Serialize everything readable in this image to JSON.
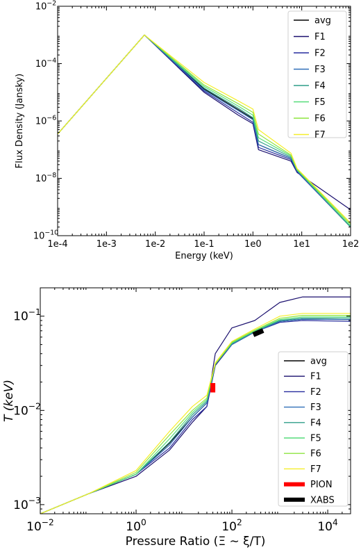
{
  "chart_data": [
    {
      "type": "line",
      "xscale": "log",
      "yscale": "log",
      "xlim": [
        0.0001,
        100
      ],
      "ylim": [
        1e-10,
        0.01
      ],
      "xlabel": "Energy (keV)",
      "ylabel": "Flux Density (Jansky)",
      "xticks": [
        {
          "value": 0.0001,
          "label": "1e-4"
        },
        {
          "value": 0.001,
          "label": "1e-3"
        },
        {
          "value": 0.01,
          "label": "1e-2"
        },
        {
          "value": 0.1,
          "label": "1e-1"
        },
        {
          "value": 1,
          "label": "1e0"
        },
        {
          "value": 10,
          "label": "1e1"
        },
        {
          "value": 100,
          "label": "1e2"
        }
      ],
      "yticks": [
        {
          "value": 1e-10,
          "base": "10",
          "exp": "−10"
        },
        {
          "value": 1e-08,
          "base": "10",
          "exp": "−8"
        },
        {
          "value": 1e-06,
          "base": "10",
          "exp": "−6"
        },
        {
          "value": 0.0001,
          "base": "10",
          "exp": "−4"
        },
        {
          "value": 0.01,
          "base": "10",
          "exp": "−2"
        }
      ],
      "legend_position": "top-right",
      "series": [
        {
          "name": "avg",
          "color": "#000000",
          "x": [
            0.0001,
            0.006,
            0.1,
            0.5,
            1.0,
            1.3,
            6,
            8,
            100
          ],
          "y": [
            3.5e-07,
            0.001,
            1.3e-05,
            2.5e-06,
            1.2e-06,
            1.5e-07,
            5e-08,
            1.8e-08,
            2e-10
          ]
        },
        {
          "name": "F1",
          "color": "#1a0f6e",
          "x": [
            0.0001,
            0.006,
            0.1,
            0.5,
            1.0,
            1.3,
            6,
            8,
            100
          ],
          "y": [
            3.5e-07,
            0.001,
            1e-05,
            1.6e-06,
            8e-07,
            1e-07,
            4e-08,
            1.6e-08,
            8e-10
          ]
        },
        {
          "name": "F2",
          "color": "#262c9e",
          "x": [
            0.0001,
            0.006,
            0.1,
            0.5,
            1.0,
            1.3,
            6,
            8,
            100
          ],
          "y": [
            3.5e-07,
            0.001,
            1.1e-05,
            1.9e-06,
            9e-07,
            1.2e-07,
            4.5e-08,
            1.7e-08,
            2e-10
          ]
        },
        {
          "name": "F3",
          "color": "#2f6fb8",
          "x": [
            0.0001,
            0.006,
            0.1,
            0.5,
            1.0,
            1.3,
            6,
            8,
            100
          ],
          "y": [
            3.5e-07,
            0.001,
            1.2e-05,
            2.3e-06,
            1.1e-06,
            1.5e-07,
            5e-08,
            1.8e-08,
            2e-10
          ]
        },
        {
          "name": "F4",
          "color": "#2e9e88",
          "x": [
            0.0001,
            0.006,
            0.1,
            0.5,
            1.0,
            1.3,
            6,
            8,
            100
          ],
          "y": [
            3.5e-07,
            0.001,
            1.4e-05,
            2.8e-06,
            1.3e-06,
            2e-07,
            5.5e-08,
            1.9e-08,
            2e-10
          ]
        },
        {
          "name": "F5",
          "color": "#55dc7a",
          "x": [
            0.0001,
            0.006,
            0.1,
            0.5,
            1.0,
            1.3,
            6,
            8,
            100
          ],
          "y": [
            3.5e-07,
            0.001,
            1.6e-05,
            3.3e-06,
            1.6e-06,
            2.6e-07,
            6e-08,
            2e-08,
            2.2e-10
          ]
        },
        {
          "name": "F6",
          "color": "#8ee53f",
          "x": [
            0.0001,
            0.006,
            0.1,
            0.5,
            1.0,
            1.3,
            6,
            8,
            100
          ],
          "y": [
            3.5e-07,
            0.001,
            1.8e-05,
            4e-06,
            2e-06,
            3.5e-07,
            6.5e-08,
            2.1e-08,
            2.5e-10
          ]
        },
        {
          "name": "F7",
          "color": "#f5ee2a",
          "x": [
            0.0001,
            0.006,
            0.1,
            0.5,
            1.0,
            1.3,
            6,
            8,
            100
          ],
          "y": [
            3.5e-07,
            0.001,
            2.2e-05,
            5e-06,
            2.6e-06,
            5e-07,
            7.5e-08,
            2.2e-08,
            2.8e-10
          ]
        }
      ]
    },
    {
      "type": "line",
      "xscale": "log",
      "yscale": "log",
      "xlim": [
        0.01,
        30000
      ],
      "ylim": [
        0.0008,
        0.2
      ],
      "xlabel": "Pressure Ratio (Ξ ∼ ξ/T)",
      "ylabel": "T (keV)",
      "xticks": [
        {
          "value": 0.01,
          "base": "10",
          "exp": "−2"
        },
        {
          "value": 1,
          "base": "10",
          "exp": "0"
        },
        {
          "value": 100,
          "base": "10",
          "exp": "2"
        },
        {
          "value": 10000,
          "base": "10",
          "exp": "4"
        }
      ],
      "yticks": [
        {
          "value": 0.001,
          "base": "10",
          "exp": "−3"
        },
        {
          "value": 0.01,
          "base": "10",
          "exp": "−2"
        },
        {
          "value": 0.1,
          "base": "10",
          "exp": "−1"
        }
      ],
      "legend_position": "bottom-right",
      "series": [
        {
          "name": "avg",
          "color": "#000000",
          "x": [
            0.01,
            0.1,
            1,
            5,
            15,
            30,
            45,
            100,
            300,
            1000,
            3000,
            30000
          ],
          "y": [
            0.0008,
            0.0013,
            0.0021,
            0.0045,
            0.0085,
            0.012,
            0.03,
            0.05,
            0.068,
            0.088,
            0.093,
            0.092
          ]
        },
        {
          "name": "F1",
          "color": "#1a0f6e",
          "x": [
            0.01,
            0.1,
            1,
            5,
            15,
            30,
            45,
            100,
            300,
            1000,
            3000,
            30000
          ],
          "y": [
            0.0008,
            0.0013,
            0.002,
            0.0038,
            0.0075,
            0.011,
            0.04,
            0.075,
            0.09,
            0.14,
            0.16,
            0.16
          ]
        },
        {
          "name": "F2",
          "color": "#262c9e",
          "x": [
            0.01,
            0.1,
            1,
            5,
            15,
            30,
            45,
            100,
            300,
            1000,
            3000,
            30000
          ],
          "y": [
            0.0008,
            0.0013,
            0.0021,
            0.004,
            0.008,
            0.011,
            0.03,
            0.05,
            0.068,
            0.086,
            0.09,
            0.088
          ]
        },
        {
          "name": "F3",
          "color": "#2f6fb8",
          "x": [
            0.01,
            0.1,
            1,
            5,
            15,
            30,
            45,
            100,
            300,
            1000,
            3000,
            30000
          ],
          "y": [
            0.0008,
            0.0013,
            0.0021,
            0.0043,
            0.0085,
            0.012,
            0.031,
            0.05,
            0.068,
            0.088,
            0.093,
            0.092
          ]
        },
        {
          "name": "F4",
          "color": "#2e9e88",
          "x": [
            0.01,
            0.1,
            1,
            5,
            15,
            30,
            45,
            100,
            300,
            1000,
            3000,
            30000
          ],
          "y": [
            0.0008,
            0.0013,
            0.0021,
            0.0046,
            0.009,
            0.0125,
            0.031,
            0.051,
            0.069,
            0.09,
            0.095,
            0.095
          ]
        },
        {
          "name": "F5",
          "color": "#55dc7a",
          "x": [
            0.01,
            0.1,
            1,
            5,
            15,
            30,
            45,
            100,
            300,
            1000,
            3000,
            30000
          ],
          "y": [
            0.0008,
            0.0013,
            0.0021,
            0.005,
            0.0095,
            0.013,
            0.031,
            0.052,
            0.07,
            0.092,
            0.098,
            0.098
          ]
        },
        {
          "name": "F6",
          "color": "#8ee53f",
          "x": [
            0.01,
            0.1,
            1,
            5,
            15,
            30,
            45,
            100,
            300,
            1000,
            3000,
            30000
          ],
          "y": [
            0.0008,
            0.0013,
            0.0022,
            0.0055,
            0.01,
            0.0135,
            0.031,
            0.053,
            0.071,
            0.095,
            0.102,
            0.102
          ]
        },
        {
          "name": "F7",
          "color": "#f5ee2a",
          "x": [
            0.01,
            0.1,
            1,
            5,
            15,
            30,
            45,
            100,
            300,
            1000,
            3000,
            30000
          ],
          "y": [
            0.0008,
            0.0013,
            0.0023,
            0.006,
            0.011,
            0.0145,
            0.032,
            0.054,
            0.073,
            0.1,
            0.107,
            0.107
          ]
        },
        {
          "name": "PION",
          "color": "#ff0000",
          "width": 7,
          "x": [
            40,
            40
          ],
          "y": [
            0.0155,
            0.0195
          ]
        },
        {
          "name": "XABS",
          "color": "#000000",
          "width": 7,
          "x": [
            280,
            450
          ],
          "y": [
            0.0635,
            0.0705
          ]
        }
      ]
    }
  ]
}
